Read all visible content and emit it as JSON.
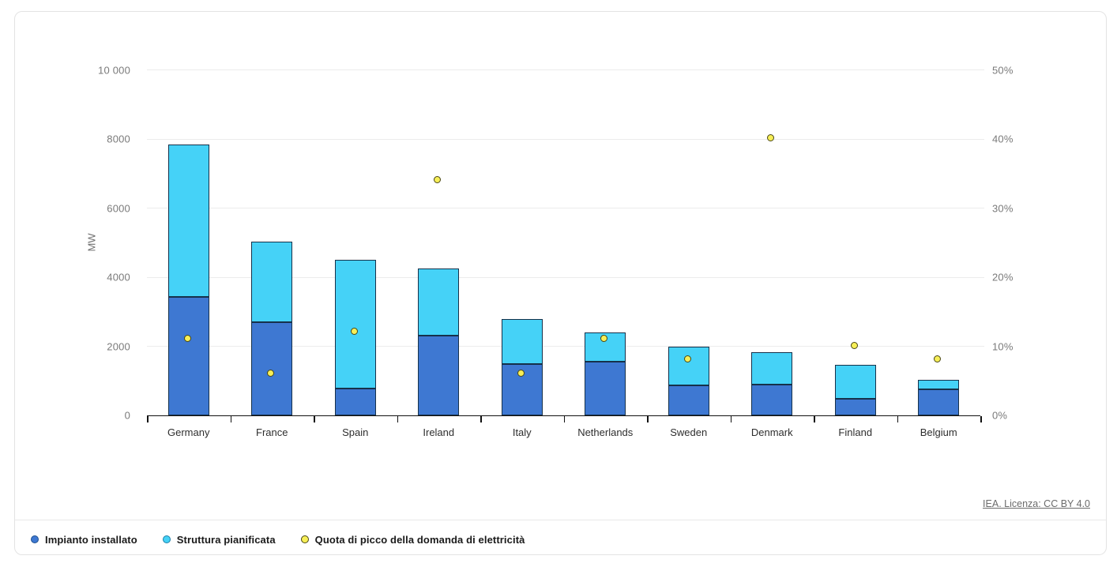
{
  "chart_data": {
    "type": "bar",
    "subtype": "stacked-bars-with-point-overlay",
    "title": "",
    "categories": [
      "Germany",
      "France",
      "Spain",
      "Ireland",
      "Italy",
      "Netherlands",
      "Sweden",
      "Denmark",
      "Finland",
      "Belgium"
    ],
    "series": [
      {
        "key": "installed",
        "name": "Impianto installato",
        "type": "bar",
        "stack": "capacity",
        "axis": "left",
        "unit": "MW",
        "color": "#3e78d2",
        "marker_border": "#1d4f8f",
        "values": [
          3440,
          2690,
          770,
          2300,
          1480,
          1560,
          860,
          900,
          470,
          750
        ]
      },
      {
        "key": "planned",
        "name": "Struttura pianificata",
        "type": "bar",
        "stack": "capacity",
        "axis": "left",
        "unit": "MW",
        "color": "#45d2f7",
        "marker_border": "#1a7fa8",
        "values": [
          4410,
          2340,
          3730,
          1960,
          1310,
          830,
          1130,
          930,
          990,
          290
        ]
      },
      {
        "key": "peak-demand-share",
        "name": "Quota di picco della domanda di elettricità",
        "type": "point",
        "axis": "right",
        "unit": "%",
        "color": "#f7ef57",
        "marker_border": "#4a4713",
        "values": [
          11,
          6,
          12,
          34,
          6,
          11,
          8,
          40,
          10,
          8
        ]
      }
    ],
    "left_axis": {
      "label": "MW",
      "min": 0,
      "max": 10000,
      "ticks": [
        "0",
        "2000",
        "4000",
        "6000",
        "8000",
        "10 000"
      ]
    },
    "right_axis": {
      "label": "",
      "min": 0,
      "max": 50,
      "ticks": [
        "0%",
        "10%",
        "20%",
        "30%",
        "40%",
        "50%"
      ]
    },
    "grid": "horizontal",
    "legend_position": "bottom-left"
  },
  "attribution": {
    "text": "IEA. Licenza: CC BY 4.0"
  },
  "colors": {
    "grid": "#ececec",
    "axis": "#111111",
    "bar_stroke": "#16314a",
    "tick_text": "#7a7a7a",
    "category_text": "#2e2e2e",
    "legend_text": "#1a1a1a",
    "link_text": "#6b6b6b",
    "card_border": "#e3e3e3",
    "background": "#ffffff"
  }
}
